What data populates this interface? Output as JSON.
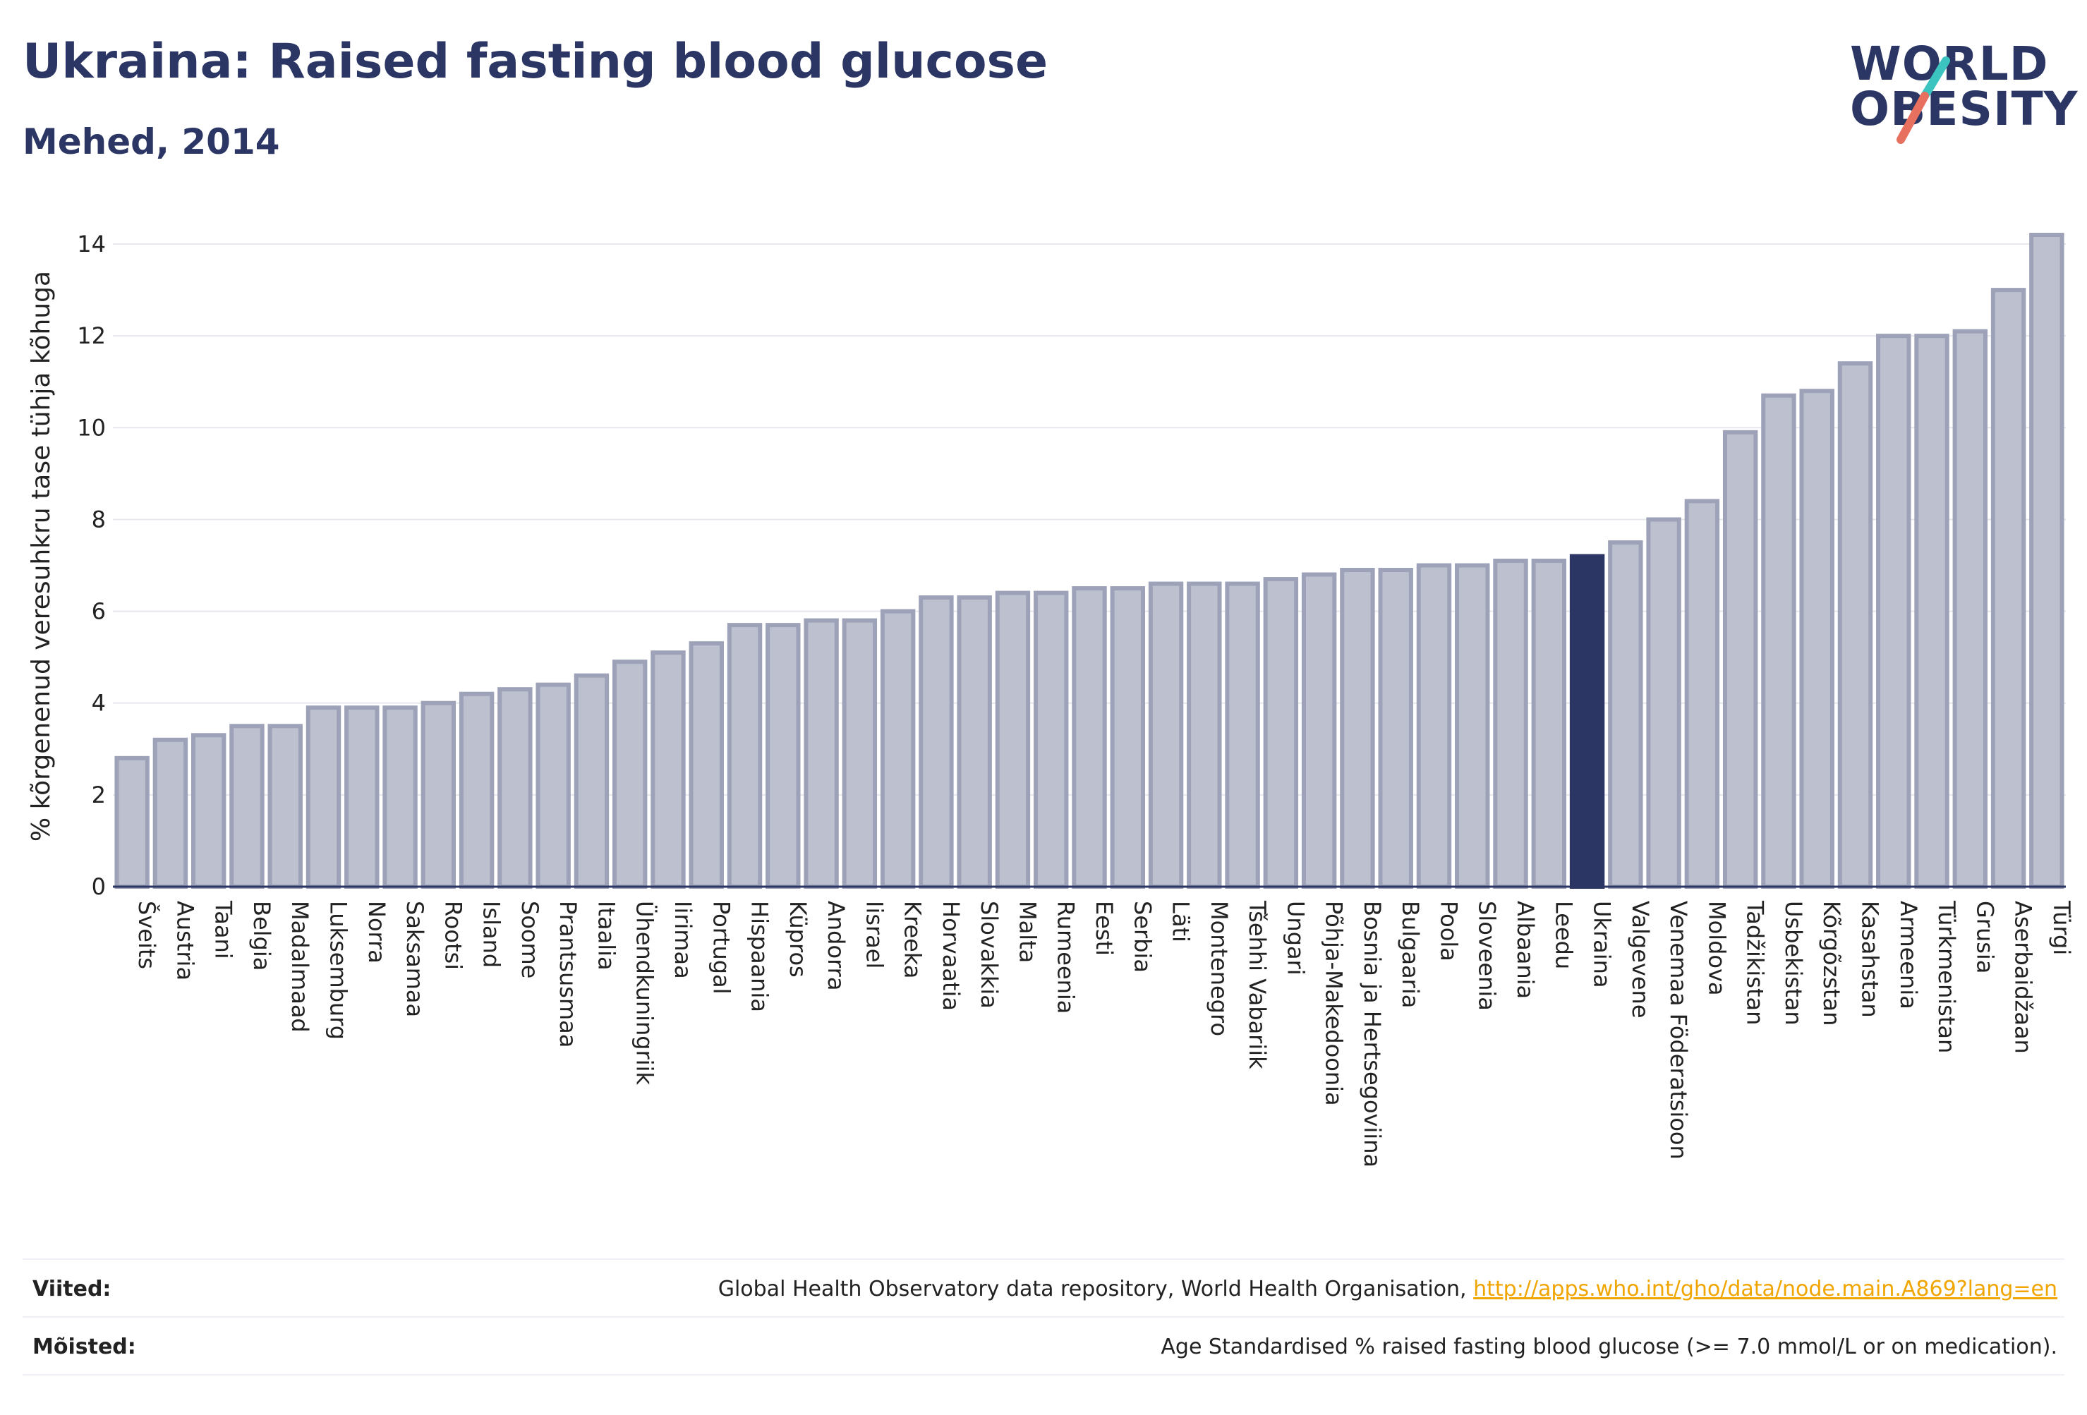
{
  "header": {
    "title": "Ukraina: Raised fasting blood glucose",
    "subtitle": "Mehed, 2014"
  },
  "logo": {
    "line1": "WORLD",
    "line2": "OBESITY",
    "slash_colors": [
      "#3cc5c0",
      "#e8705e"
    ]
  },
  "colors": {
    "bar": "#bcc0cf",
    "bar_border": "#9da2b8",
    "highlight": "#2b3664",
    "grid": "#e6e8ee",
    "axis": "#2b3664"
  },
  "chart_data": {
    "type": "bar",
    "ylabel": "% kõrgenenud veresuhkru tase tühja kõhuga",
    "ylim": [
      0,
      14.4
    ],
    "yticks": [
      0,
      2,
      4,
      6,
      8,
      10,
      12,
      14
    ],
    "grid": true,
    "highlight": "Ukraina",
    "categories": [
      "Šveits",
      "Austria",
      "Taani",
      "Belgia",
      "Madalmaad",
      "Luksemburg",
      "Norra",
      "Saksamaa",
      "Rootsi",
      "Island",
      "Soome",
      "Prantsusmaa",
      "Itaalia",
      "Ühendkuningriik",
      "Iirimaa",
      "Portugal",
      "Hispaania",
      "Küpros",
      "Andorra",
      "Iisrael",
      "Kreeka",
      "Horvaatia",
      "Slovakkia",
      "Malta",
      "Rumeenia",
      "Eesti",
      "Serbia",
      "Läti",
      "Montenegro",
      "Tšehhi Vabariik",
      "Ungari",
      "Põhja-Makedoonia",
      "Bosnia ja Hertsegoviina",
      "Bulgaaria",
      "Poola",
      "Sloveenia",
      "Albaania",
      "Leedu",
      "Ukraina",
      "Valgevene",
      "Venemaa Föderatsioon",
      "Moldova",
      "Tadžikistan",
      "Usbekistan",
      "Kõrgõzstan",
      "Kasahstan",
      "Armeenia",
      "Türkmenistan",
      "Grusia",
      "Aserbaidžaan",
      "Türgi"
    ],
    "values": [
      2.8,
      3.2,
      3.3,
      3.5,
      3.5,
      3.9,
      3.9,
      3.9,
      4.0,
      4.2,
      4.3,
      4.4,
      4.6,
      4.9,
      5.1,
      5.3,
      5.7,
      5.7,
      5.8,
      5.8,
      6.0,
      6.3,
      6.3,
      6.4,
      6.4,
      6.5,
      6.5,
      6.6,
      6.6,
      6.6,
      6.7,
      6.8,
      6.9,
      6.9,
      7.0,
      7.0,
      7.1,
      7.1,
      7.2,
      7.5,
      8.0,
      8.4,
      9.9,
      10.7,
      10.8,
      11.4,
      12.0,
      12.0,
      12.1,
      13.0,
      14.2
    ]
  },
  "footer": {
    "references_label": "Viited:",
    "references_text": "Global Health Observatory data repository, World Health Organisation,",
    "references_link": "http://apps.who.int/gho/data/node.main.A869?lang=en",
    "definitions_label": "Mõisted:",
    "definitions_text": "Age Standardised % raised fasting blood glucose (>= 7.0 mmol/L or on medication)."
  }
}
